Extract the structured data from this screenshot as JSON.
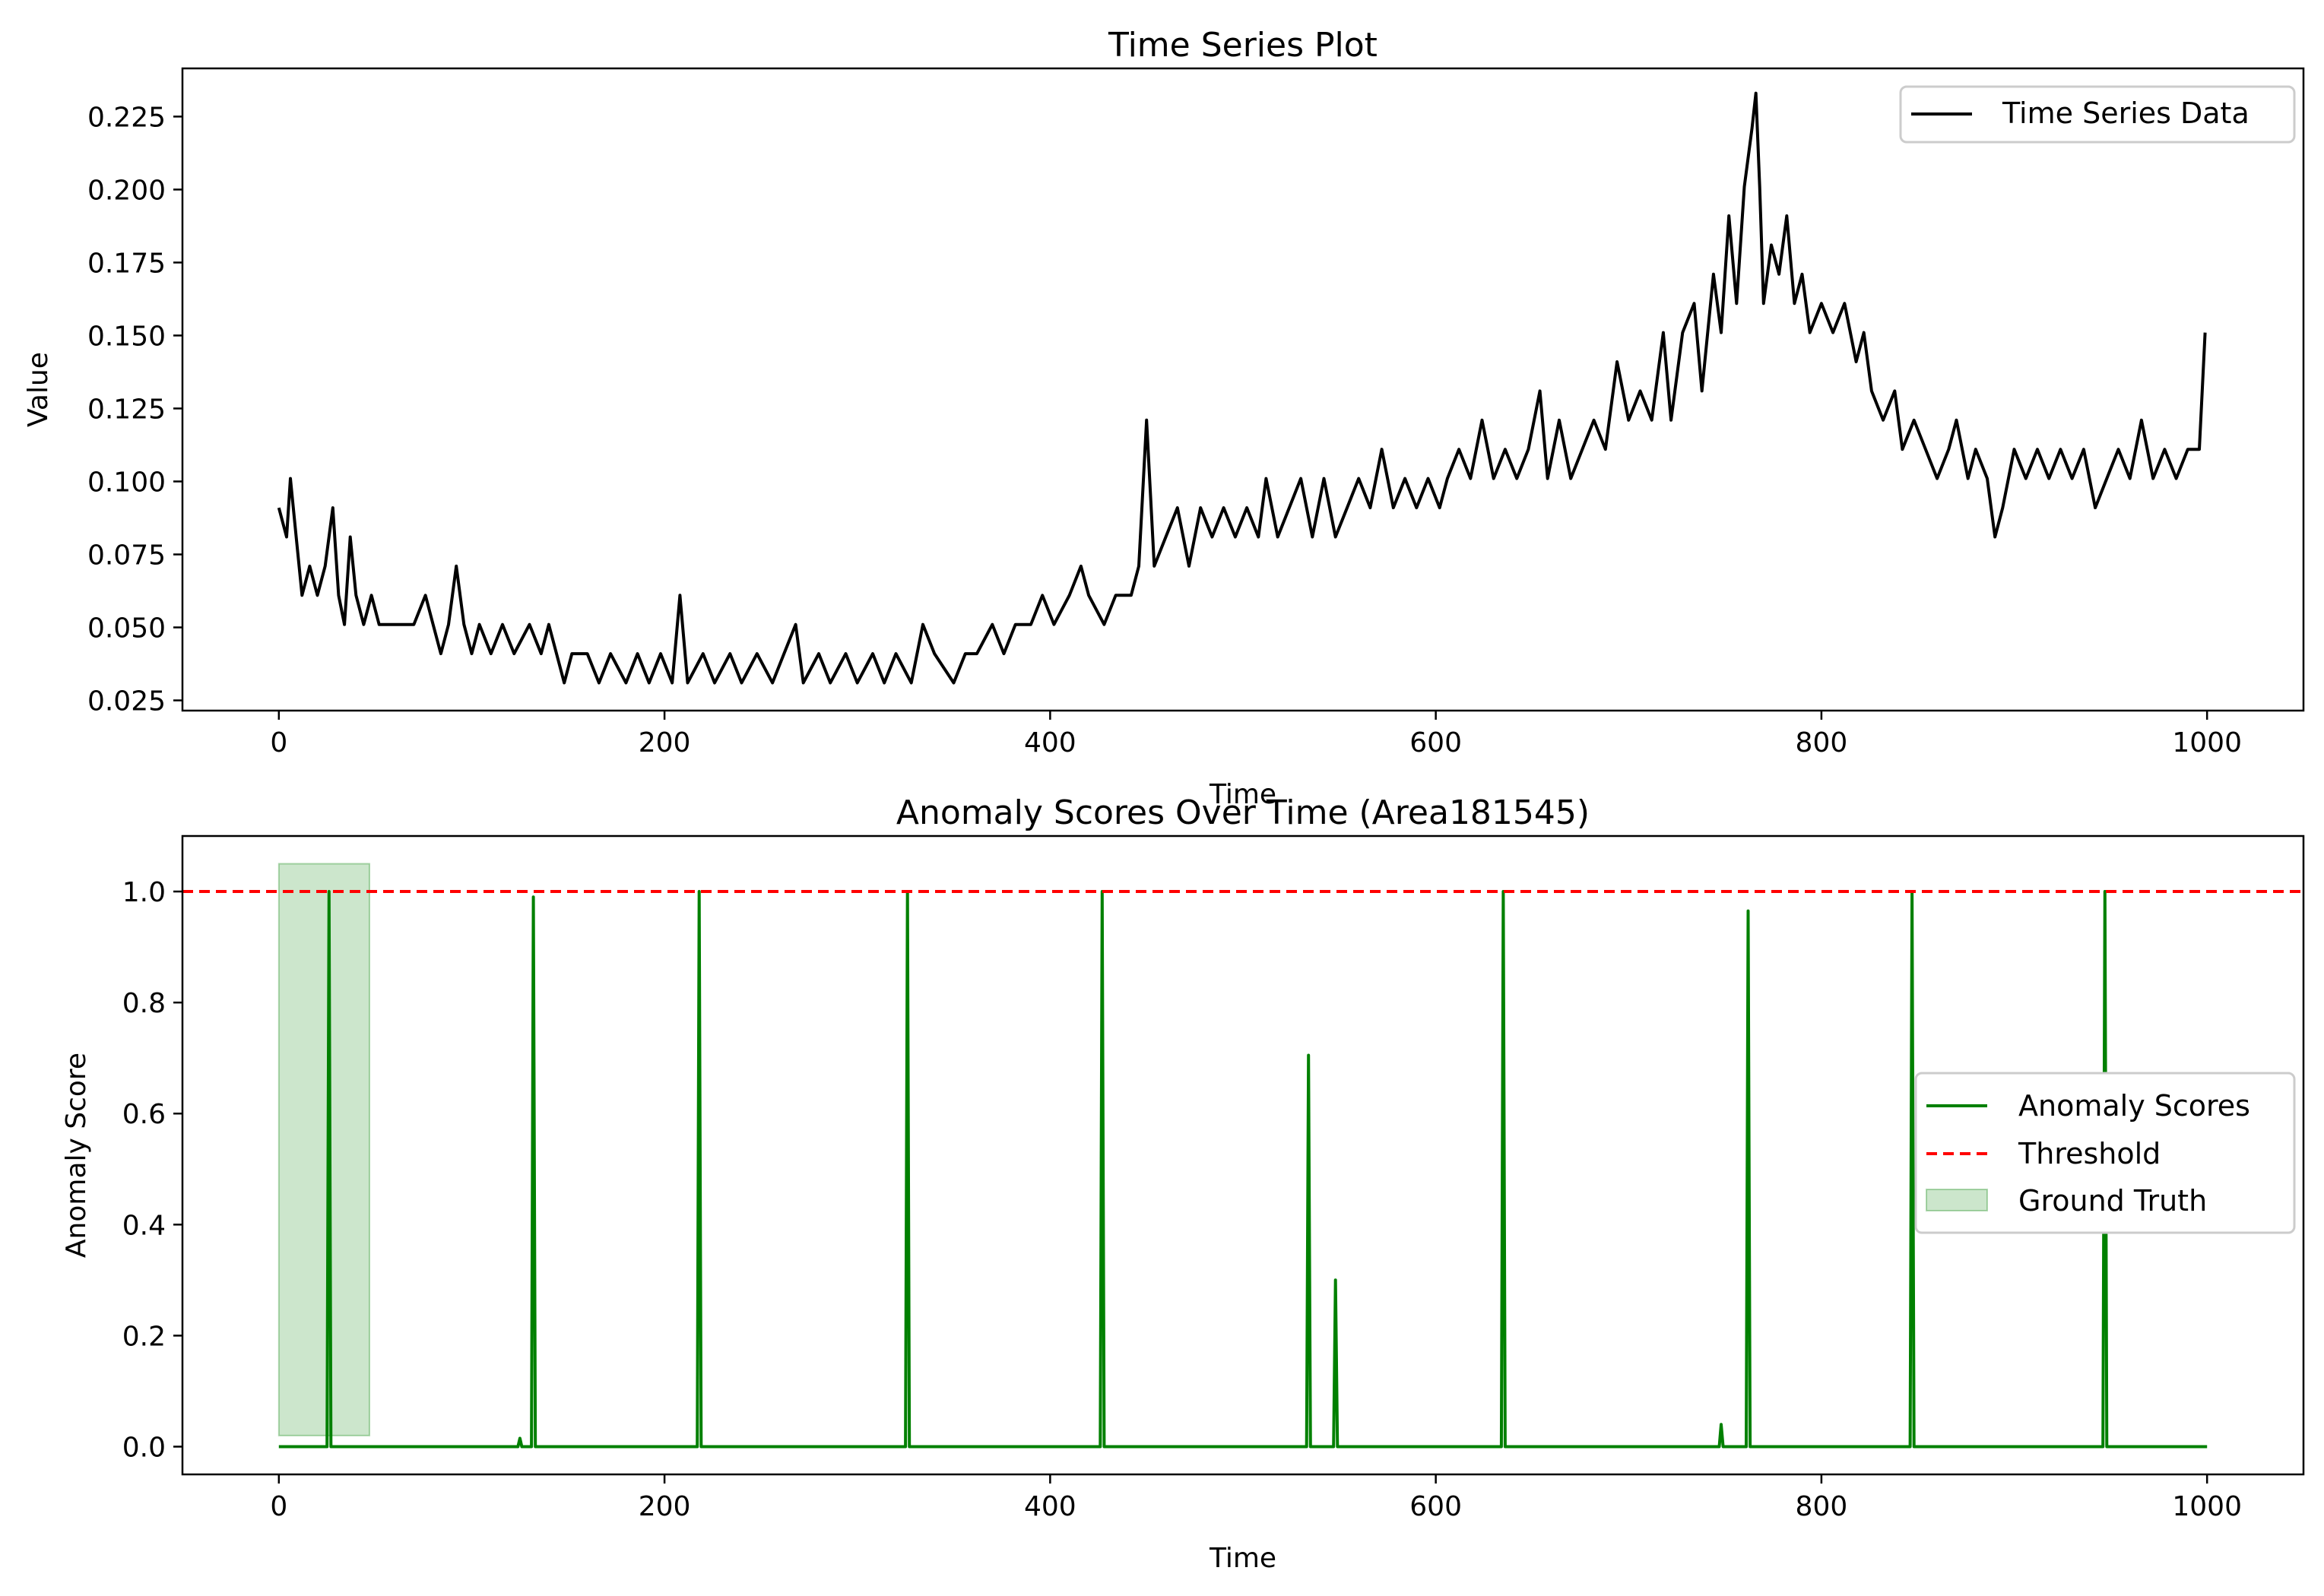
{
  "chart_data": [
    {
      "type": "line",
      "title": "Time Series Plot",
      "xlabel": "Time",
      "ylabel": "Value",
      "xlim": [
        -50,
        1050
      ],
      "ylim": [
        0.0215,
        0.2415
      ],
      "xticks": [
        0,
        200,
        400,
        600,
        800,
        1000
      ],
      "yticks": [
        0.025,
        0.05,
        0.075,
        0.1,
        0.125,
        0.15,
        0.175,
        0.2,
        0.225
      ],
      "ytick_labels": [
        "0.025",
        "0.050",
        "0.075",
        "0.100",
        "0.125",
        "0.150",
        "0.175",
        "0.200",
        "0.225"
      ],
      "grid": false,
      "legend_position": "top-right",
      "series": [
        {
          "name": "Time Series Data",
          "color": "#000000",
          "points": [
            [
              0,
              0.091
            ],
            [
              4,
              0.081
            ],
            [
              6,
              0.101
            ],
            [
              9,
              0.081
            ],
            [
              12,
              0.061
            ],
            [
              16,
              0.071
            ],
            [
              20,
              0.061
            ],
            [
              24,
              0.071
            ],
            [
              28,
              0.091
            ],
            [
              31,
              0.061
            ],
            [
              34,
              0.051
            ],
            [
              37,
              0.081
            ],
            [
              40,
              0.061
            ],
            [
              44,
              0.051
            ],
            [
              48,
              0.061
            ],
            [
              52,
              0.051
            ],
            [
              60,
              0.051
            ],
            [
              70,
              0.051
            ],
            [
              76,
              0.061
            ],
            [
              80,
              0.051
            ],
            [
              84,
              0.041
            ],
            [
              88,
              0.051
            ],
            [
              92,
              0.071
            ],
            [
              96,
              0.051
            ],
            [
              100,
              0.041
            ],
            [
              104,
              0.051
            ],
            [
              110,
              0.041
            ],
            [
              116,
              0.051
            ],
            [
              122,
              0.041
            ],
            [
              130,
              0.051
            ],
            [
              136,
              0.041
            ],
            [
              140,
              0.051
            ],
            [
              148,
              0.031
            ],
            [
              152,
              0.041
            ],
            [
              160,
              0.041
            ],
            [
              166,
              0.031
            ],
            [
              172,
              0.041
            ],
            [
              180,
              0.031
            ],
            [
              186,
              0.041
            ],
            [
              192,
              0.031
            ],
            [
              198,
              0.041
            ],
            [
              204,
              0.031
            ],
            [
              208,
              0.061
            ],
            [
              212,
              0.031
            ],
            [
              220,
              0.041
            ],
            [
              226,
              0.031
            ],
            [
              234,
              0.041
            ],
            [
              240,
              0.031
            ],
            [
              248,
              0.041
            ],
            [
              256,
              0.031
            ],
            [
              262,
              0.041
            ],
            [
              268,
              0.051
            ],
            [
              272,
              0.031
            ],
            [
              280,
              0.041
            ],
            [
              286,
              0.031
            ],
            [
              294,
              0.041
            ],
            [
              300,
              0.031
            ],
            [
              308,
              0.041
            ],
            [
              314,
              0.031
            ],
            [
              320,
              0.041
            ],
            [
              328,
              0.031
            ],
            [
              334,
              0.051
            ],
            [
              340,
              0.041
            ],
            [
              350,
              0.031
            ],
            [
              356,
              0.041
            ],
            [
              362,
              0.041
            ],
            [
              370,
              0.051
            ],
            [
              376,
              0.041
            ],
            [
              382,
              0.051
            ],
            [
              390,
              0.051
            ],
            [
              396,
              0.061
            ],
            [
              402,
              0.051
            ],
            [
              410,
              0.061
            ],
            [
              416,
              0.071
            ],
            [
              420,
              0.061
            ],
            [
              428,
              0.051
            ],
            [
              434,
              0.061
            ],
            [
              442,
              0.061
            ],
            [
              446,
              0.071
            ],
            [
              450,
              0.121
            ],
            [
              454,
              0.071
            ],
            [
              460,
              0.081
            ],
            [
              466,
              0.091
            ],
            [
              472,
              0.071
            ],
            [
              478,
              0.091
            ],
            [
              484,
              0.081
            ],
            [
              490,
              0.091
            ],
            [
              496,
              0.081
            ],
            [
              502,
              0.091
            ],
            [
              508,
              0.081
            ],
            [
              512,
              0.101
            ],
            [
              518,
              0.081
            ],
            [
              524,
              0.091
            ],
            [
              530,
              0.101
            ],
            [
              536,
              0.081
            ],
            [
              542,
              0.101
            ],
            [
              548,
              0.081
            ],
            [
              554,
              0.091
            ],
            [
              560,
              0.101
            ],
            [
              566,
              0.091
            ],
            [
              572,
              0.111
            ],
            [
              578,
              0.091
            ],
            [
              584,
              0.101
            ],
            [
              590,
              0.091
            ],
            [
              596,
              0.101
            ],
            [
              602,
              0.091
            ],
            [
              606,
              0.101
            ],
            [
              612,
              0.111
            ],
            [
              618,
              0.101
            ],
            [
              624,
              0.121
            ],
            [
              630,
              0.101
            ],
            [
              636,
              0.111
            ],
            [
              642,
              0.101
            ],
            [
              648,
              0.111
            ],
            [
              654,
              0.131
            ],
            [
              658,
              0.101
            ],
            [
              664,
              0.121
            ],
            [
              670,
              0.101
            ],
            [
              676,
              0.111
            ],
            [
              682,
              0.121
            ],
            [
              688,
              0.111
            ],
            [
              694,
              0.141
            ],
            [
              700,
              0.121
            ],
            [
              706,
              0.131
            ],
            [
              712,
              0.121
            ],
            [
              718,
              0.151
            ],
            [
              722,
              0.121
            ],
            [
              728,
              0.151
            ],
            [
              734,
              0.161
            ],
            [
              738,
              0.131
            ],
            [
              744,
              0.171
            ],
            [
              748,
              0.151
            ],
            [
              752,
              0.191
            ],
            [
              756,
              0.161
            ],
            [
              760,
              0.201
            ],
            [
              764,
              0.221
            ],
            [
              766,
              0.233
            ],
            [
              768,
              0.201
            ],
            [
              770,
              0.161
            ],
            [
              774,
              0.181
            ],
            [
              778,
              0.171
            ],
            [
              782,
              0.191
            ],
            [
              786,
              0.161
            ],
            [
              790,
              0.171
            ],
            [
              794,
              0.151
            ],
            [
              800,
              0.161
            ],
            [
              806,
              0.151
            ],
            [
              812,
              0.161
            ],
            [
              818,
              0.141
            ],
            [
              822,
              0.151
            ],
            [
              826,
              0.131
            ],
            [
              832,
              0.121
            ],
            [
              838,
              0.131
            ],
            [
              842,
              0.111
            ],
            [
              848,
              0.121
            ],
            [
              854,
              0.111
            ],
            [
              860,
              0.101
            ],
            [
              866,
              0.111
            ],
            [
              870,
              0.121
            ],
            [
              876,
              0.101
            ],
            [
              880,
              0.111
            ],
            [
              886,
              0.101
            ],
            [
              890,
              0.081
            ],
            [
              894,
              0.091
            ],
            [
              900,
              0.111
            ],
            [
              906,
              0.101
            ],
            [
              912,
              0.111
            ],
            [
              918,
              0.101
            ],
            [
              924,
              0.111
            ],
            [
              930,
              0.101
            ],
            [
              936,
              0.111
            ],
            [
              942,
              0.091
            ],
            [
              948,
              0.101
            ],
            [
              954,
              0.111
            ],
            [
              960,
              0.101
            ],
            [
              966,
              0.121
            ],
            [
              972,
              0.101
            ],
            [
              978,
              0.111
            ],
            [
              984,
              0.101
            ],
            [
              990,
              0.111
            ],
            [
              996,
              0.111
            ],
            [
              999,
              0.151
            ]
          ]
        }
      ]
    },
    {
      "type": "line",
      "title": "Anomaly Scores Over Time (Area181545)",
      "xlabel": "Time",
      "ylabel": "Anomaly Score",
      "xlim": [
        -50,
        1050
      ],
      "ylim": [
        -0.05,
        1.1
      ],
      "xticks": [
        0,
        200,
        400,
        600,
        800,
        1000
      ],
      "yticks": [
        0.0,
        0.2,
        0.4,
        0.6,
        0.8,
        1.0
      ],
      "ytick_labels": [
        "0.0",
        "0.2",
        "0.4",
        "0.6",
        "0.8",
        "1.0"
      ],
      "grid": false,
      "legend_position": "center-right",
      "series": [
        {
          "name": "Anomaly Scores",
          "color": "#008000",
          "points": [
            [
              0,
              0
            ],
            [
              25,
              0
            ],
            [
              26,
              1.0
            ],
            [
              27,
              0
            ],
            [
              124,
              0
            ],
            [
              125,
              0.015
            ],
            [
              126,
              0
            ],
            [
              131,
              0
            ],
            [
              132,
              0.99
            ],
            [
              133,
              0
            ],
            [
              217,
              0
            ],
            [
              218,
              1.0
            ],
            [
              219,
              0
            ],
            [
              325,
              0
            ],
            [
              326,
              1.0
            ],
            [
              327,
              0
            ],
            [
              426,
              0
            ],
            [
              427,
              1.0
            ],
            [
              428,
              0
            ],
            [
              533,
              0
            ],
            [
              534,
              0.705
            ],
            [
              535,
              0
            ],
            [
              547,
              0
            ],
            [
              548,
              0.3
            ],
            [
              549,
              0
            ],
            [
              634,
              0
            ],
            [
              635,
              1.0
            ],
            [
              636,
              0
            ],
            [
              747,
              0
            ],
            [
              748,
              0.04
            ],
            [
              749,
              0
            ],
            [
              761,
              0
            ],
            [
              762,
              0.965
            ],
            [
              763,
              0
            ],
            [
              846,
              0
            ],
            [
              847,
              1.0
            ],
            [
              848,
              0
            ],
            [
              946,
              0
            ],
            [
              947,
              1.0
            ],
            [
              948,
              0
            ],
            [
              1000,
              0
            ]
          ]
        }
      ],
      "threshold": {
        "name": "Threshold",
        "value": 1.0,
        "color": "#ff0000",
        "style": "dashed"
      },
      "ground_truth": {
        "name": "Ground Truth",
        "x_range": [
          0,
          47
        ],
        "y_range": [
          0.02,
          1.05
        ],
        "color": "#008000",
        "opacity": 0.2
      }
    }
  ]
}
